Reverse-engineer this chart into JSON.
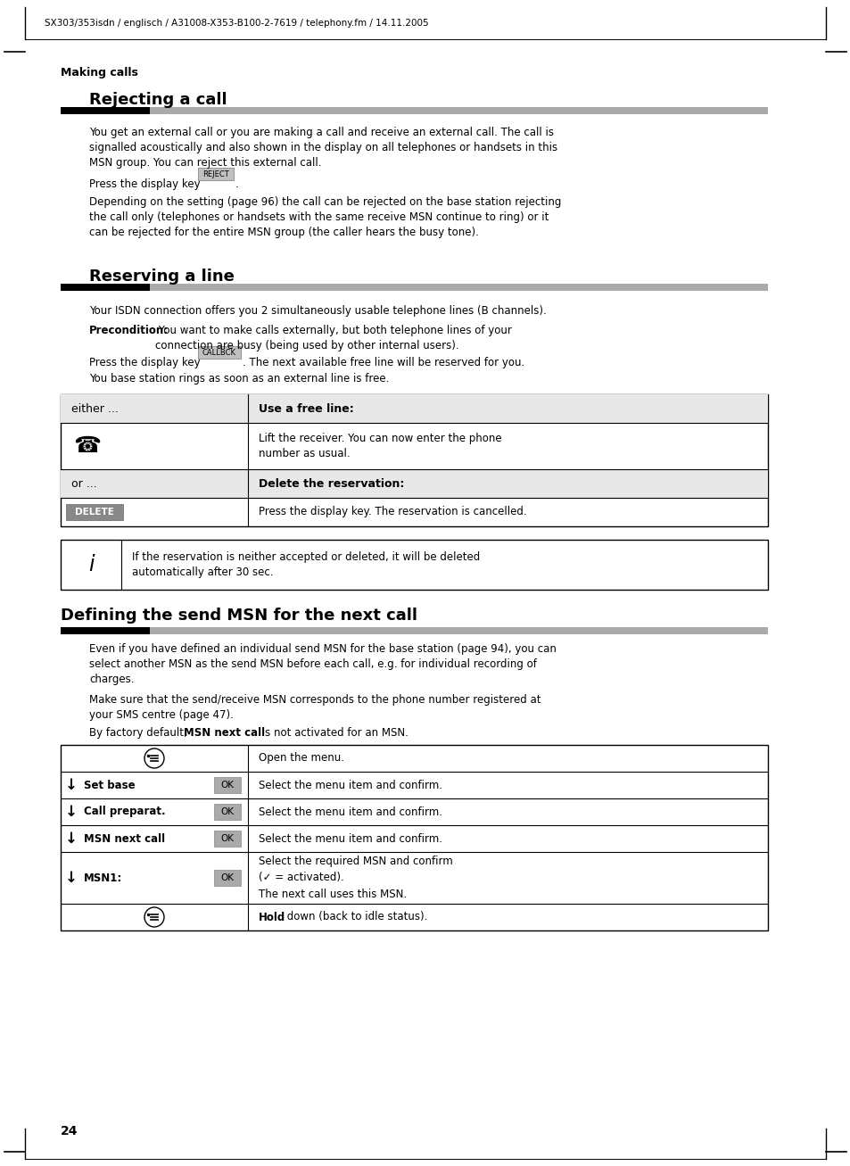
{
  "bg_color": "#ffffff",
  "header_text": "SX303/353isdn / englisch / A31008-X353-B100-2-7619 / telephony.fm / 14.11.2005",
  "section_label": "Making calls",
  "h1": "Rejecting a call",
  "h2": "Reserving a line",
  "h3": "Defining the send MSN for the next call",
  "page_number": "24",
  "text_color": "#000000",
  "bar_black": "#000000",
  "bar_gray": "#aaaaaa",
  "btn_bg": "#c0c0c0",
  "btn_border": "#888888",
  "ok_bg": "#999999",
  "delete_bg": "#888888",
  "table_header_bg": "#e8e8e8"
}
